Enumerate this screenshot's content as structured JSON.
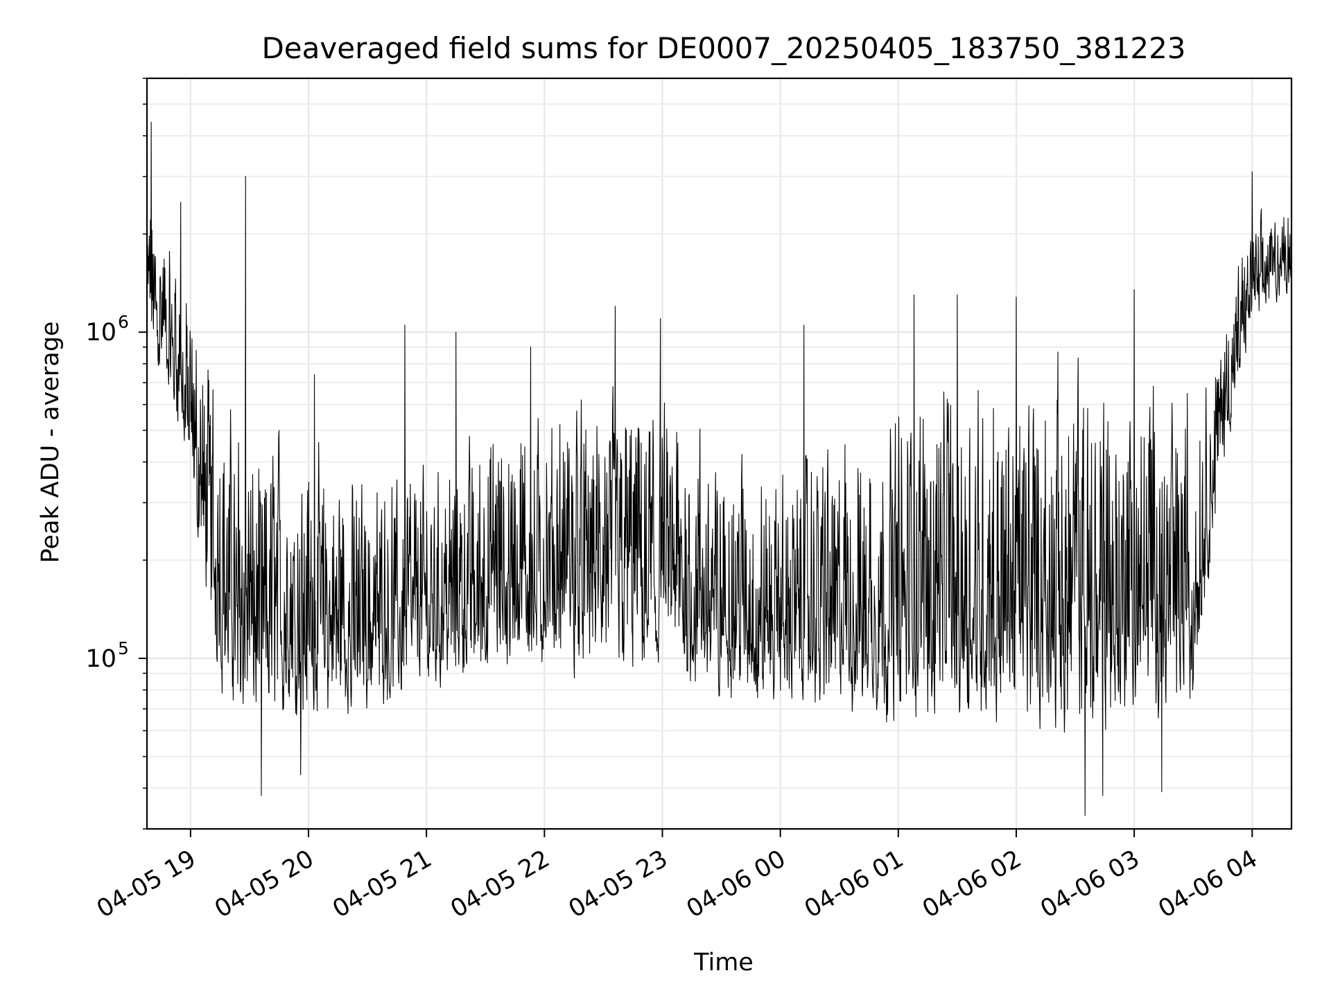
{
  "chart_data": {
    "type": "line",
    "title": "Deaveraged field sums for DE0007_20250405_183750_381223",
    "xlabel": "Time",
    "ylabel": "Peak ADU - average",
    "y_scale": "log",
    "ylim": [
      30000,
      6000000
    ],
    "xlim": [
      "2025-04-05 18:37:50",
      "2025-04-06 04:20:00"
    ],
    "grid": true,
    "grid_minor": true,
    "line_color": "#000000",
    "x_ticks": [
      {
        "t": "2025-04-05 19:00",
        "label": "04-05 19"
      },
      {
        "t": "2025-04-05 20:00",
        "label": "04-05 20"
      },
      {
        "t": "2025-04-05 21:00",
        "label": "04-05 21"
      },
      {
        "t": "2025-04-05 22:00",
        "label": "04-05 22"
      },
      {
        "t": "2025-04-05 23:00",
        "label": "04-05 23"
      },
      {
        "t": "2025-04-06 00:00",
        "label": "04-06 00"
      },
      {
        "t": "2025-04-06 01:00",
        "label": "04-06 01"
      },
      {
        "t": "2025-04-06 02:00",
        "label": "04-06 02"
      },
      {
        "t": "2025-04-06 03:00",
        "label": "04-06 03"
      },
      {
        "t": "2025-04-06 04:00",
        "label": "04-06 04"
      }
    ],
    "y_ticks": [
      {
        "value": 100000,
        "base": "10",
        "exp": "5"
      },
      {
        "value": 1000000,
        "base": "10",
        "exp": "6"
      }
    ],
    "series": [
      {
        "style": "dense_noisy_line",
        "envelope": [
          {
            "t": "2025-04-05 18:37:50",
            "low": 900000,
            "high": 3500000
          },
          {
            "t": "2025-04-05 18:45",
            "low": 700000,
            "high": 2500000
          },
          {
            "t": "2025-04-05 18:55",
            "low": 450000,
            "high": 2200000
          },
          {
            "t": "2025-04-05 19:05",
            "low": 170000,
            "high": 1300000
          },
          {
            "t": "2025-04-05 19:15",
            "low": 70000,
            "high": 900000
          },
          {
            "t": "2025-04-05 19:30",
            "low": 55000,
            "high": 650000
          },
          {
            "t": "2025-04-05 20:00",
            "low": 55000,
            "high": 650000
          },
          {
            "t": "2025-04-05 20:30",
            "low": 60000,
            "high": 450000
          },
          {
            "t": "2025-04-05 21:00",
            "low": 75000,
            "high": 500000
          },
          {
            "t": "2025-04-05 21:30",
            "low": 75000,
            "high": 700000
          },
          {
            "t": "2025-04-05 22:00",
            "low": 80000,
            "high": 800000
          },
          {
            "t": "2025-04-05 22:30",
            "low": 80000,
            "high": 850000
          },
          {
            "t": "2025-04-05 23:00",
            "low": 75000,
            "high": 850000
          },
          {
            "t": "2025-04-05 23:30",
            "low": 65000,
            "high": 600000
          },
          {
            "t": "2025-04-06 00:00",
            "low": 65000,
            "high": 500000
          },
          {
            "t": "2025-04-06 00:30",
            "low": 58000,
            "high": 650000
          },
          {
            "t": "2025-04-06 01:00",
            "low": 55000,
            "high": 850000
          },
          {
            "t": "2025-04-06 01:30",
            "low": 52000,
            "high": 1100000
          },
          {
            "t": "2025-04-06 02:00",
            "low": 52000,
            "high": 1150000
          },
          {
            "t": "2025-04-06 02:30",
            "low": 50000,
            "high": 1150000
          },
          {
            "t": "2025-04-06 03:00",
            "low": 52000,
            "high": 1100000
          },
          {
            "t": "2025-04-06 03:30",
            "low": 60000,
            "high": 1000000
          },
          {
            "t": "2025-04-06 03:45",
            "low": 350000,
            "high": 1300000
          },
          {
            "t": "2025-04-06 04:00",
            "low": 1000000,
            "high": 2500000
          },
          {
            "t": "2025-04-06 04:20",
            "low": 1300000,
            "high": 2800000
          }
        ],
        "spikes": [
          {
            "t": "2025-04-05 18:40",
            "value": 4400000
          },
          {
            "t": "2025-04-05 18:55",
            "value": 2500000
          },
          {
            "t": "2025-04-05 19:28",
            "value": 3000000
          },
          {
            "t": "2025-04-05 19:36",
            "value": 38000
          },
          {
            "t": "2025-04-05 19:56",
            "value": 44000
          },
          {
            "t": "2025-04-05 20:03",
            "value": 740000
          },
          {
            "t": "2025-04-05 20:49",
            "value": 1050000
          },
          {
            "t": "2025-04-05 21:15",
            "value": 1000000
          },
          {
            "t": "2025-04-05 21:53",
            "value": 900000
          },
          {
            "t": "2025-04-05 22:36",
            "value": 1200000
          },
          {
            "t": "2025-04-05 22:59",
            "value": 1100000
          },
          {
            "t": "2025-04-06 00:12",
            "value": 1050000
          },
          {
            "t": "2025-04-06 01:08",
            "value": 1300000
          },
          {
            "t": "2025-04-06 01:30",
            "value": 1300000
          },
          {
            "t": "2025-04-06 02:00",
            "value": 1280000
          },
          {
            "t": "2025-04-06 02:35",
            "value": 33000
          },
          {
            "t": "2025-04-06 02:44",
            "value": 38000
          },
          {
            "t": "2025-04-06 03:00",
            "value": 1350000
          },
          {
            "t": "2025-04-06 03:14",
            "value": 39000
          },
          {
            "t": "2025-04-06 04:00",
            "value": 3100000
          }
        ]
      }
    ]
  }
}
